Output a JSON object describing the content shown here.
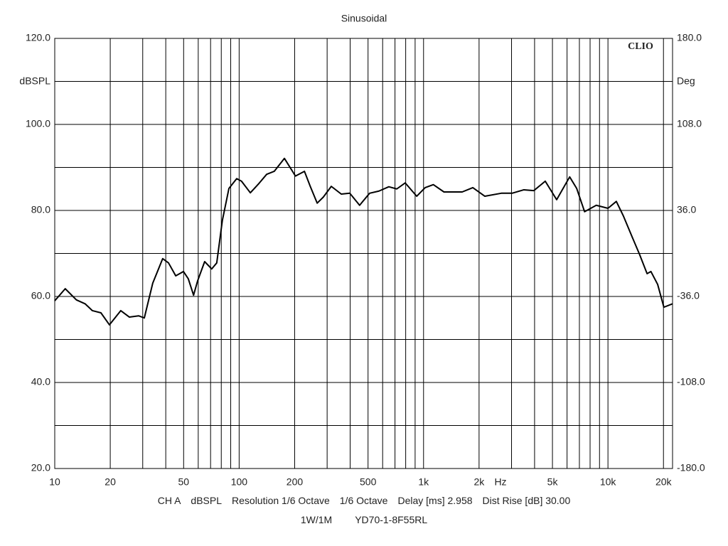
{
  "chart_data": {
    "type": "line",
    "title": "Sinusoidal",
    "ylabel": "dBSPL",
    "y2label": "Deg",
    "xunit": "Hz",
    "watermark": "CLIO",
    "xscale": "log",
    "xlim": [
      10,
      22400
    ],
    "ylim": [
      20,
      120
    ],
    "y2lim": [
      -180,
      180
    ],
    "xticks": [
      10,
      20,
      50,
      100,
      200,
      500,
      {
        "value": 1000,
        "label": "1k"
      },
      {
        "value": 2000,
        "label": "2k"
      },
      {
        "value": 5000,
        "label": "5k"
      },
      {
        "value": 10000,
        "label": "10k"
      },
      {
        "value": 20000,
        "label": "20k"
      }
    ],
    "x_gridlines": [
      10,
      20,
      30,
      40,
      50,
      60,
      70,
      80,
      90,
      100,
      200,
      300,
      400,
      500,
      600,
      700,
      800,
      900,
      1000,
      2000,
      3000,
      4000,
      5000,
      6000,
      7000,
      8000,
      9000,
      10000,
      20000
    ],
    "yticks": [
      {
        "value": 20,
        "label": "20.0"
      },
      {
        "value": 40,
        "label": "40.0"
      },
      {
        "value": 60,
        "label": "60.0"
      },
      {
        "value": 80,
        "label": "80.0"
      },
      {
        "value": 100,
        "label": "100.0"
      },
      {
        "value": 120,
        "label": "120.0"
      }
    ],
    "y_gridlines": [
      20,
      30,
      40,
      50,
      60,
      70,
      80,
      90,
      100,
      110,
      120
    ],
    "y2ticks": [
      {
        "value": -180,
        "label": "-180.0"
      },
      {
        "value": -108,
        "label": "-108.0"
      },
      {
        "value": -36,
        "label": "-36.0"
      },
      {
        "value": 36,
        "label": "36.0"
      },
      {
        "value": 108,
        "label": "108.0"
      },
      {
        "value": 180,
        "label": "180.0"
      }
    ],
    "grid": true,
    "series": [
      {
        "name": "dBSPL",
        "color": "#000000",
        "x": [
          10,
          11.4,
          13.1,
          14.6,
          16.0,
          17.8,
          19.8,
          22.8,
          25.4,
          28.5,
          30.6,
          34,
          38.5,
          41.4,
          45.3,
          49.9,
          53,
          56.6,
          59.5,
          65,
          71,
          75.6,
          81.1,
          88,
          97,
          103,
          115,
          127,
          141,
          155,
          176,
          202,
          226,
          243,
          265,
          286,
          316,
          358,
          398,
          450,
          510,
          573,
          648,
          716,
          795,
          918,
          1020,
          1130,
          1290,
          1620,
          1850,
          2150,
          2640,
          3020,
          3500,
          3960,
          4570,
          5270,
          6200,
          6770,
          7470,
          8640,
          10000,
          11100,
          12100,
          13600,
          14800,
          16300,
          17100,
          18600,
          20100,
          22400
        ],
        "values": [
          59.0,
          61.8,
          59.2,
          58.3,
          56.7,
          56.2,
          53.4,
          56.7,
          55.2,
          55.5,
          55.0,
          63.1,
          68.8,
          67.8,
          64.8,
          65.8,
          64.1,
          60.3,
          63.6,
          68.1,
          66.4,
          67.8,
          77.7,
          85.1,
          87.4,
          86.8,
          84.1,
          86.1,
          88.4,
          89.1,
          92.1,
          88.0,
          89.1,
          85.6,
          81.7,
          83.1,
          85.6,
          83.8,
          84.0,
          81.2,
          84.0,
          84.5,
          85.5,
          85.0,
          86.4,
          83.3,
          85.3,
          86.0,
          84.3,
          84.3,
          85.3,
          83.3,
          84.0,
          84.0,
          84.8,
          84.6,
          86.8,
          82.5,
          87.8,
          85.1,
          79.7,
          81.2,
          80.5,
          82.1,
          78.8,
          73.6,
          69.9,
          65.3,
          65.8,
          62.8,
          57.5,
          58.3
        ]
      }
    ],
    "footer": [
      [
        "CH A",
        "dBSPL",
        "Resolution 1/6 Octave",
        "1/6 Octave",
        "Delay [ms] 2.958",
        "Dist Rise [dB] 30.00"
      ],
      [
        "1W/1M",
        "YD70-1-8F55RL"
      ]
    ]
  }
}
